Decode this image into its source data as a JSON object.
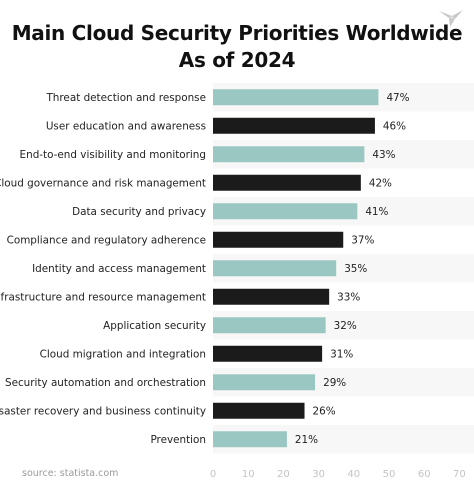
{
  "header": {
    "title_line1": "Main Cloud Security Priorities Worldwide",
    "title_line2": "As of 2024"
  },
  "footer": {
    "source": "source: statista.com"
  },
  "colors": {
    "teal": "#9bc7c3",
    "dark": "#1b1b1b",
    "band": "#f7f7f7",
    "tick": "#c4c4c4"
  },
  "chart_data": {
    "type": "bar",
    "orientation": "horizontal",
    "title": "Main Cloud Security Priorities Worldwide As of 2024",
    "categories": [
      "Threat detection and response",
      "User education and awareness",
      "End-to-end visibility and monitoring",
      "Cloud governance and risk management",
      "Data security and privacy",
      "Compliance and regulatory adherence",
      "Identity and access management",
      "Infrastructure and resource management",
      "Application security",
      "Cloud migration and integration",
      "Security automation and orchestration",
      "Disaster recovery and business continuity",
      "Prevention"
    ],
    "values": [
      47,
      46,
      43,
      42,
      41,
      37,
      35,
      33,
      32,
      31,
      29,
      26,
      21
    ],
    "value_labels": [
      "47%",
      "46%",
      "43%",
      "42%",
      "41%",
      "37%",
      "35%",
      "33%",
      "32%",
      "31%",
      "29%",
      "26%",
      "21%"
    ],
    "bar_colors": [
      "teal",
      "dark",
      "teal",
      "dark",
      "teal",
      "dark",
      "teal",
      "dark",
      "teal",
      "dark",
      "teal",
      "dark",
      "teal"
    ],
    "xlim": [
      0,
      70
    ],
    "xticks": [
      0,
      10,
      20,
      30,
      40,
      50,
      60,
      70
    ],
    "xlabel": "",
    "ylabel": "",
    "grid": false,
    "legend": "none"
  }
}
